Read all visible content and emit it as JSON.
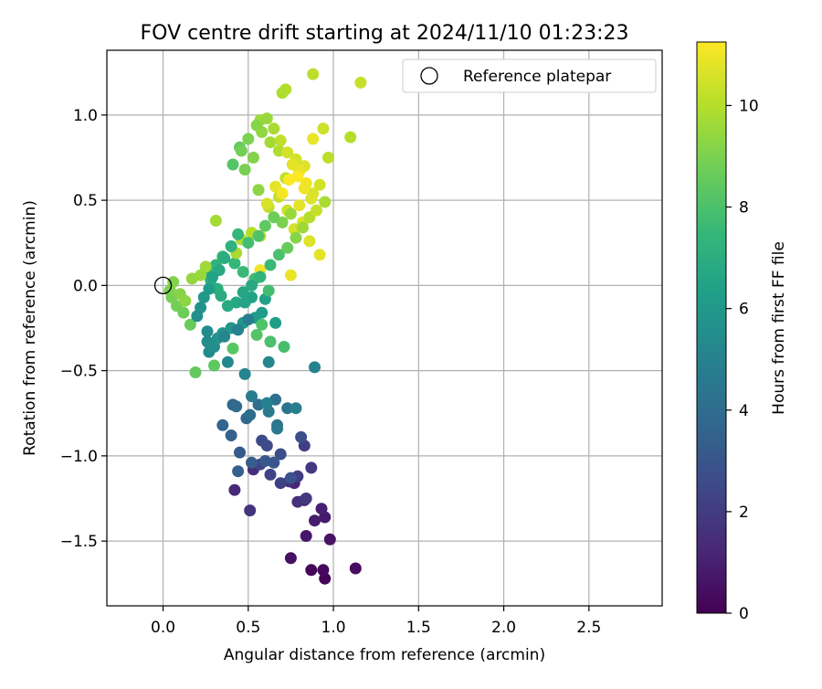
{
  "chart_data": {
    "type": "scatter",
    "title": "FOV centre drift starting at 2024/11/10 01:23:23",
    "xlabel": "Angular distance from reference (arcmin)",
    "ylabel": "Rotation from reference (arcmin)",
    "xlim": [
      -0.33,
      2.93
    ],
    "ylim": [
      -1.88,
      1.38
    ],
    "xticks": [
      0.0,
      0.5,
      1.0,
      1.5,
      2.0,
      2.5
    ],
    "xtick_labels": [
      "0.0",
      "0.5",
      "1.0",
      "1.5",
      "2.0",
      "2.5"
    ],
    "yticks": [
      -1.5,
      -1.0,
      -0.5,
      0.0,
      0.5,
      1.0
    ],
    "ytick_labels": [
      "−1.5",
      "−1.0",
      "−0.5",
      "0.0",
      "0.5",
      "1.0"
    ],
    "grid": true,
    "legend": {
      "location": "top-right",
      "entries": [
        "Reference platepar"
      ]
    },
    "reference_point": {
      "x": 0.0,
      "y": 0.0
    },
    "colorbar": {
      "label": "Hours from first FF file",
      "range": [
        0,
        11.25
      ],
      "ticks": [
        0,
        2,
        4,
        6,
        8,
        10
      ],
      "tick_labels": [
        "0",
        "2",
        "4",
        "6",
        "8",
        "10"
      ],
      "colormap": "viridis"
    },
    "colormap_stops": [
      "#440154",
      "#482878",
      "#3e4989",
      "#31688e",
      "#26828e",
      "#1f9e89",
      "#35b779",
      "#6ece58",
      "#b5de2b",
      "#fde725"
    ],
    "points": [
      [
        0.95,
        -1.72,
        0.1
      ],
      [
        0.87,
        -1.67,
        0.2
      ],
      [
        0.94,
        -1.67,
        0.3
      ],
      [
        1.13,
        -1.66,
        0.4
      ],
      [
        0.75,
        -1.6,
        0.5
      ],
      [
        0.98,
        -1.49,
        0.6
      ],
      [
        0.84,
        -1.47,
        0.7
      ],
      [
        0.95,
        -1.36,
        0.8
      ],
      [
        0.89,
        -1.38,
        0.9
      ],
      [
        0.93,
        -1.31,
        1.0
      ],
      [
        0.83,
        -1.26,
        1.1
      ],
      [
        0.77,
        -1.16,
        1.2
      ],
      [
        0.42,
        -1.2,
        1.3
      ],
      [
        0.53,
        -1.08,
        1.4
      ],
      [
        0.74,
        -1.15,
        1.5
      ],
      [
        0.79,
        -1.27,
        1.6
      ],
      [
        0.51,
        -1.32,
        1.7
      ],
      [
        0.84,
        -1.25,
        1.8
      ],
      [
        0.87,
        -1.07,
        1.9
      ],
      [
        0.79,
        -1.12,
        2.0
      ],
      [
        0.83,
        -0.94,
        2.1
      ],
      [
        0.69,
        -1.16,
        2.2
      ],
      [
        0.63,
        -1.11,
        2.3
      ],
      [
        0.57,
        -1.05,
        2.4
      ],
      [
        0.58,
        -0.91,
        2.5
      ],
      [
        0.61,
        -0.94,
        2.6
      ],
      [
        0.69,
        -0.99,
        2.7
      ],
      [
        0.81,
        -0.89,
        2.8
      ],
      [
        0.75,
        -1.13,
        2.9
      ],
      [
        0.65,
        -1.04,
        3.0
      ],
      [
        0.6,
        -1.03,
        3.1
      ],
      [
        0.45,
        -0.98,
        3.2
      ],
      [
        0.52,
        -1.04,
        3.3
      ],
      [
        0.44,
        -1.09,
        3.4
      ],
      [
        0.4,
        -0.88,
        3.5
      ],
      [
        0.35,
        -0.82,
        3.6
      ],
      [
        0.49,
        -0.78,
        3.7
      ],
      [
        0.41,
        -0.7,
        3.8
      ],
      [
        0.43,
        -0.71,
        3.9
      ],
      [
        0.51,
        -0.76,
        4.0
      ],
      [
        0.56,
        -0.7,
        4.1
      ],
      [
        0.66,
        -0.67,
        4.2
      ],
      [
        0.73,
        -0.72,
        4.3
      ],
      [
        0.67,
        -0.82,
        4.4
      ],
      [
        0.67,
        -0.84,
        4.5
      ],
      [
        0.62,
        -0.74,
        4.6
      ],
      [
        0.52,
        -0.65,
        4.7
      ],
      [
        0.78,
        -0.72,
        4.8
      ],
      [
        0.61,
        -0.69,
        4.9
      ],
      [
        0.89,
        -0.48,
        5.0
      ],
      [
        0.48,
        -0.52,
        5.1
      ],
      [
        0.62,
        -0.45,
        5.2
      ],
      [
        0.38,
        -0.45,
        5.3
      ],
      [
        0.27,
        -0.39,
        5.4
      ],
      [
        0.26,
        -0.33,
        5.5
      ],
      [
        0.3,
        -0.36,
        5.6
      ],
      [
        0.32,
        -0.31,
        5.7
      ],
      [
        0.35,
        -0.28,
        5.8
      ],
      [
        0.4,
        -0.25,
        5.9
      ],
      [
        0.47,
        -0.22,
        6.0
      ],
      [
        0.54,
        -0.19,
        6.1
      ],
      [
        0.58,
        -0.16,
        6.2
      ],
      [
        0.66,
        -0.22,
        6.3
      ],
      [
        0.6,
        -0.08,
        6.4
      ],
      [
        0.52,
        -0.07,
        6.5
      ],
      [
        0.47,
        -0.04,
        6.6
      ],
      [
        0.43,
        -0.1,
        6.7
      ],
      [
        0.38,
        -0.12,
        6.8
      ],
      [
        0.34,
        -0.06,
        6.9
      ],
      [
        0.32,
        -0.02,
        7.0
      ],
      [
        0.28,
        0.03,
        7.1
      ],
      [
        0.26,
        0.08,
        7.2
      ],
      [
        0.31,
        0.12,
        7.3
      ],
      [
        0.35,
        0.17,
        7.4
      ],
      [
        0.42,
        0.13,
        7.5
      ],
      [
        0.47,
        0.08,
        7.6
      ],
      [
        0.54,
        0.04,
        7.7
      ],
      [
        0.62,
        -0.03,
        7.8
      ],
      [
        0.71,
        -0.36,
        7.9
      ],
      [
        0.63,
        -0.33,
        8.0
      ],
      [
        0.58,
        -0.23,
        8.1
      ],
      [
        0.55,
        -0.29,
        8.2
      ],
      [
        0.41,
        -0.37,
        8.3
      ],
      [
        0.3,
        -0.47,
        8.4
      ],
      [
        0.19,
        -0.51,
        8.5
      ],
      [
        0.16,
        -0.23,
        8.6
      ],
      [
        0.12,
        -0.16,
        8.7
      ],
      [
        0.08,
        -0.12,
        8.8
      ],
      [
        0.05,
        -0.07,
        8.9
      ],
      [
        0.04,
        -0.03,
        9.0
      ],
      [
        0.06,
        0.02,
        9.1
      ],
      [
        0.1,
        -0.05,
        9.2
      ],
      [
        0.13,
        -0.09,
        9.3
      ],
      [
        0.17,
        0.04,
        9.4
      ],
      [
        0.22,
        0.06,
        9.5
      ],
      [
        0.25,
        0.11,
        9.6
      ],
      [
        0.31,
        0.38,
        9.7
      ],
      [
        0.43,
        0.19,
        9.8
      ],
      [
        0.46,
        0.27,
        9.9
      ],
      [
        0.52,
        0.31,
        10.0
      ],
      [
        0.57,
        0.29,
        10.1
      ],
      [
        0.62,
        0.46,
        10.2
      ],
      [
        0.68,
        0.52,
        10.3
      ],
      [
        0.73,
        0.44,
        10.4
      ],
      [
        0.77,
        0.33,
        10.5
      ],
      [
        0.82,
        0.37,
        10.6
      ],
      [
        0.86,
        0.26,
        10.7
      ],
      [
        0.92,
        0.18,
        10.8
      ],
      [
        0.75,
        0.06,
        10.9
      ],
      [
        0.57,
        0.09,
        11.0
      ],
      [
        0.41,
        0.71,
        8.2
      ],
      [
        0.45,
        0.81,
        8.5
      ],
      [
        0.48,
        0.68,
        8.9
      ],
      [
        0.53,
        0.75,
        9.1
      ],
      [
        0.58,
        0.9,
        9.4
      ],
      [
        0.63,
        0.84,
        9.7
      ],
      [
        0.68,
        0.79,
        9.9
      ],
      [
        0.72,
        0.63,
        10.2
      ],
      [
        0.78,
        0.74,
        10.5
      ],
      [
        0.83,
        0.7,
        10.7
      ],
      [
        0.88,
        0.86,
        10.9
      ],
      [
        0.94,
        0.92,
        10.4
      ],
      [
        0.97,
        0.75,
        10.1
      ],
      [
        1.1,
        0.87,
        10.0
      ],
      [
        1.16,
        1.19,
        10.3
      ],
      [
        0.88,
        1.24,
        10.1
      ],
      [
        0.72,
        1.15,
        10.0
      ],
      [
        0.7,
        1.13,
        9.9
      ],
      [
        0.57,
        0.97,
        9.6
      ],
      [
        0.56,
        0.56,
        9.3
      ],
      [
        0.61,
        0.48,
        10.6
      ],
      [
        0.66,
        0.58,
        10.8
      ],
      [
        0.7,
        0.54,
        11.1
      ],
      [
        0.74,
        0.62,
        11.2
      ],
      [
        0.8,
        0.67,
        10.9
      ],
      [
        0.84,
        0.6,
        11.0
      ],
      [
        0.88,
        0.54,
        10.6
      ],
      [
        0.92,
        0.59,
        10.5
      ],
      [
        0.95,
        0.49,
        9.8
      ],
      [
        0.8,
        0.47,
        10.8
      ],
      [
        0.75,
        0.42,
        9.5
      ],
      [
        0.7,
        0.37,
        9.0
      ],
      [
        0.65,
        0.4,
        8.7
      ],
      [
        0.6,
        0.35,
        8.4
      ],
      [
        0.56,
        0.29,
        8.1
      ],
      [
        0.5,
        0.25,
        7.8
      ],
      [
        0.44,
        0.3,
        7.5
      ],
      [
        0.4,
        0.23,
        7.2
      ],
      [
        0.36,
        0.16,
        7.0
      ],
      [
        0.33,
        0.09,
        6.7
      ],
      [
        0.29,
        0.05,
        6.5
      ],
      [
        0.27,
        -0.02,
        6.2
      ],
      [
        0.24,
        -0.07,
        6.0
      ],
      [
        0.22,
        -0.13,
        5.8
      ],
      [
        0.2,
        -0.18,
        5.6
      ],
      [
        0.26,
        -0.27,
        5.4
      ],
      [
        0.36,
        -0.3,
        5.2
      ],
      [
        0.44,
        -0.26,
        5.0
      ],
      [
        0.5,
        -0.2,
        4.8
      ],
      [
        0.48,
        -0.1,
        6.6
      ],
      [
        0.52,
        0.0,
        6.8
      ],
      [
        0.57,
        0.05,
        7.3
      ],
      [
        0.63,
        0.12,
        7.6
      ],
      [
        0.68,
        0.18,
        8.0
      ],
      [
        0.73,
        0.22,
        8.6
      ],
      [
        0.78,
        0.28,
        9.2
      ],
      [
        0.82,
        0.34,
        9.6
      ],
      [
        0.86,
        0.4,
        10.0
      ],
      [
        0.9,
        0.44,
        10.3
      ],
      [
        0.87,
        0.51,
        10.7
      ],
      [
        0.83,
        0.57,
        11.0
      ],
      [
        0.79,
        0.64,
        11.2
      ],
      [
        0.76,
        0.71,
        10.8
      ],
      [
        0.73,
        0.78,
        10.5
      ],
      [
        0.69,
        0.85,
        10.2
      ],
      [
        0.65,
        0.92,
        9.8
      ],
      [
        0.61,
        0.98,
        9.5
      ],
      [
        0.55,
        0.94,
        9.2
      ],
      [
        0.5,
        0.86,
        9.0
      ],
      [
        0.46,
        0.79,
        8.8
      ]
    ]
  }
}
